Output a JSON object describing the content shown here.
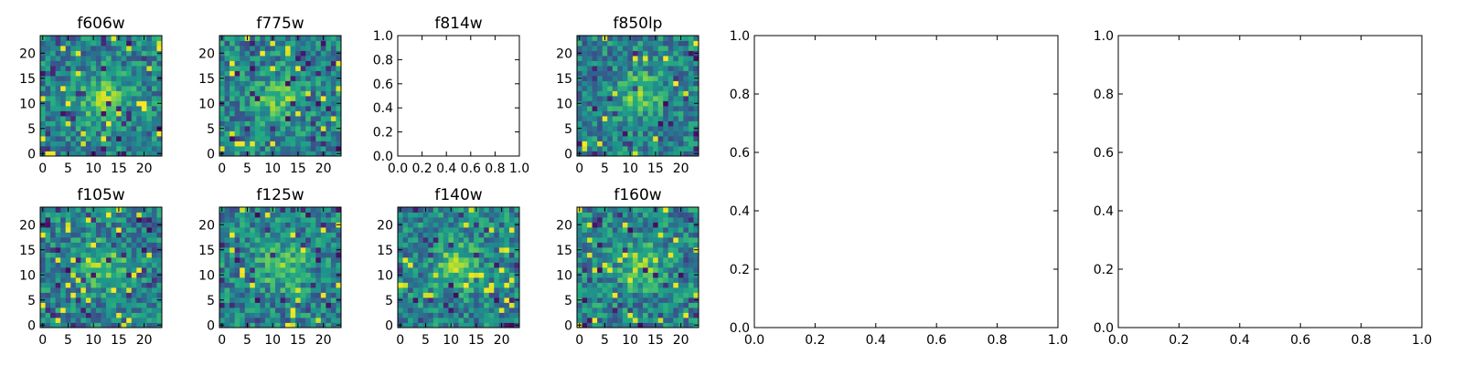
{
  "figure": {
    "background": "#ffffff"
  },
  "chart_data": [
    {
      "type": "heatmap",
      "title": "f606w",
      "colormap": "viridis",
      "grid_size": [
        24,
        24
      ],
      "xlim": [
        -0.5,
        23.5
      ],
      "ylim": [
        -0.5,
        23.5
      ],
      "xticks": [
        0,
        5,
        10,
        15,
        20
      ],
      "yticks": [
        0,
        5,
        10,
        15,
        20
      ],
      "xtick_labels": [
        "0",
        "5",
        "10",
        "15",
        "20"
      ],
      "ytick_labels": [
        "0",
        "5",
        "10",
        "15",
        "20"
      ],
      "source_center": [
        12,
        11
      ],
      "seed": 11
    },
    {
      "type": "heatmap",
      "title": "f775w",
      "colormap": "viridis",
      "grid_size": [
        24,
        24
      ],
      "xlim": [
        -0.5,
        23.5
      ],
      "ylim": [
        -0.5,
        23.5
      ],
      "xticks": [
        0,
        5,
        10,
        15,
        20
      ],
      "yticks": [
        0,
        5,
        10,
        15,
        20
      ],
      "xtick_labels": [
        "0",
        "5",
        "10",
        "15",
        "20"
      ],
      "ytick_labels": [
        "0",
        "5",
        "10",
        "15",
        "20"
      ],
      "source_center": [
        11,
        11
      ],
      "seed": 27
    },
    {
      "type": "empty",
      "title": "f814w",
      "xlim": [
        0.0,
        1.0
      ],
      "ylim": [
        0.0,
        1.0
      ],
      "xticks": [
        0.0,
        0.2,
        0.4,
        0.6,
        0.8,
        1.0
      ],
      "yticks": [
        0.0,
        0.2,
        0.4,
        0.6,
        0.8,
        1.0
      ],
      "xtick_labels": [
        "0.0",
        "0.2",
        "0.4",
        "0.6",
        "0.8",
        "1.0"
      ],
      "ytick_labels": [
        "0.0",
        "0.2",
        "0.4",
        "0.6",
        "0.8",
        "1.0"
      ]
    },
    {
      "type": "heatmap",
      "title": "f850lp",
      "colormap": "viridis",
      "grid_size": [
        24,
        24
      ],
      "xlim": [
        -0.5,
        23.5
      ],
      "ylim": [
        -0.5,
        23.5
      ],
      "xticks": [
        0,
        5,
        10,
        15,
        20
      ],
      "yticks": [
        0,
        5,
        10,
        15,
        20
      ],
      "xtick_labels": [
        "0",
        "5",
        "10",
        "15",
        "20"
      ],
      "ytick_labels": [
        "0",
        "5",
        "10",
        "15",
        "20"
      ],
      "source_center": [
        12,
        12
      ],
      "seed": 43
    },
    {
      "type": "heatmap",
      "title": "f105w",
      "colormap": "viridis",
      "grid_size": [
        24,
        24
      ],
      "xlim": [
        -0.5,
        23.5
      ],
      "ylim": [
        -0.5,
        23.5
      ],
      "xticks": [
        0,
        5,
        10,
        15,
        20
      ],
      "yticks": [
        0,
        5,
        10,
        15,
        20
      ],
      "xtick_labels": [
        "0",
        "5",
        "10",
        "15",
        "20"
      ],
      "ytick_labels": [
        "0",
        "5",
        "10",
        "15",
        "20"
      ],
      "source_center": [
        12,
        12
      ],
      "seed": 59
    },
    {
      "type": "heatmap",
      "title": "f125w",
      "colormap": "viridis",
      "grid_size": [
        24,
        24
      ],
      "xlim": [
        -0.5,
        23.5
      ],
      "ylim": [
        -0.5,
        23.5
      ],
      "xticks": [
        0,
        5,
        10,
        15,
        20
      ],
      "yticks": [
        0,
        5,
        10,
        15,
        20
      ],
      "xtick_labels": [
        "0",
        "5",
        "10",
        "15",
        "20"
      ],
      "ytick_labels": [
        "0",
        "5",
        "10",
        "15",
        "20"
      ],
      "source_center": [
        12,
        12
      ],
      "seed": 71
    },
    {
      "type": "heatmap",
      "title": "f140w",
      "colormap": "viridis",
      "grid_size": [
        24,
        24
      ],
      "xlim": [
        -0.5,
        23.5
      ],
      "ylim": [
        -0.5,
        23.5
      ],
      "xticks": [
        0,
        5,
        10,
        15,
        20
      ],
      "yticks": [
        0,
        5,
        10,
        15,
        20
      ],
      "xtick_labels": [
        "0",
        "5",
        "10",
        "15",
        "20"
      ],
      "ytick_labels": [
        "0",
        "5",
        "10",
        "15",
        "20"
      ],
      "source_center": [
        11,
        12
      ],
      "seed": 83
    },
    {
      "type": "heatmap",
      "title": "f160w",
      "colormap": "viridis",
      "grid_size": [
        24,
        24
      ],
      "xlim": [
        -0.5,
        23.5
      ],
      "ylim": [
        -0.5,
        23.5
      ],
      "xticks": [
        0,
        5,
        10,
        15,
        20
      ],
      "yticks": [
        0,
        5,
        10,
        15,
        20
      ],
      "xtick_labels": [
        "0",
        "5",
        "10",
        "15",
        "20"
      ],
      "ytick_labels": [
        "0",
        "5",
        "10",
        "15",
        "20"
      ],
      "source_center": [
        12,
        12
      ],
      "seed": 97
    },
    {
      "type": "empty",
      "title": "",
      "xlim": [
        0.0,
        1.0
      ],
      "ylim": [
        0.0,
        1.0
      ],
      "xticks": [
        0.0,
        0.2,
        0.4,
        0.6,
        0.8,
        1.0
      ],
      "yticks": [
        0.0,
        0.2,
        0.4,
        0.6,
        0.8,
        1.0
      ],
      "xtick_labels": [
        "0.0",
        "0.2",
        "0.4",
        "0.6",
        "0.8",
        "1.0"
      ],
      "ytick_labels": [
        "0.0",
        "0.2",
        "0.4",
        "0.6",
        "0.8",
        "1.0"
      ]
    },
    {
      "type": "empty",
      "title": "",
      "xlim": [
        0.0,
        1.0
      ],
      "ylim": [
        0.0,
        1.0
      ],
      "xticks": [
        0.0,
        0.2,
        0.4,
        0.6,
        0.8,
        1.0
      ],
      "yticks": [
        0.0,
        0.2,
        0.4,
        0.6,
        0.8,
        1.0
      ],
      "xtick_labels": [
        "0.0",
        "0.2",
        "0.4",
        "0.6",
        "0.8",
        "1.0"
      ],
      "ytick_labels": [
        "0.0",
        "0.2",
        "0.4",
        "0.6",
        "0.8",
        "1.0"
      ]
    }
  ]
}
